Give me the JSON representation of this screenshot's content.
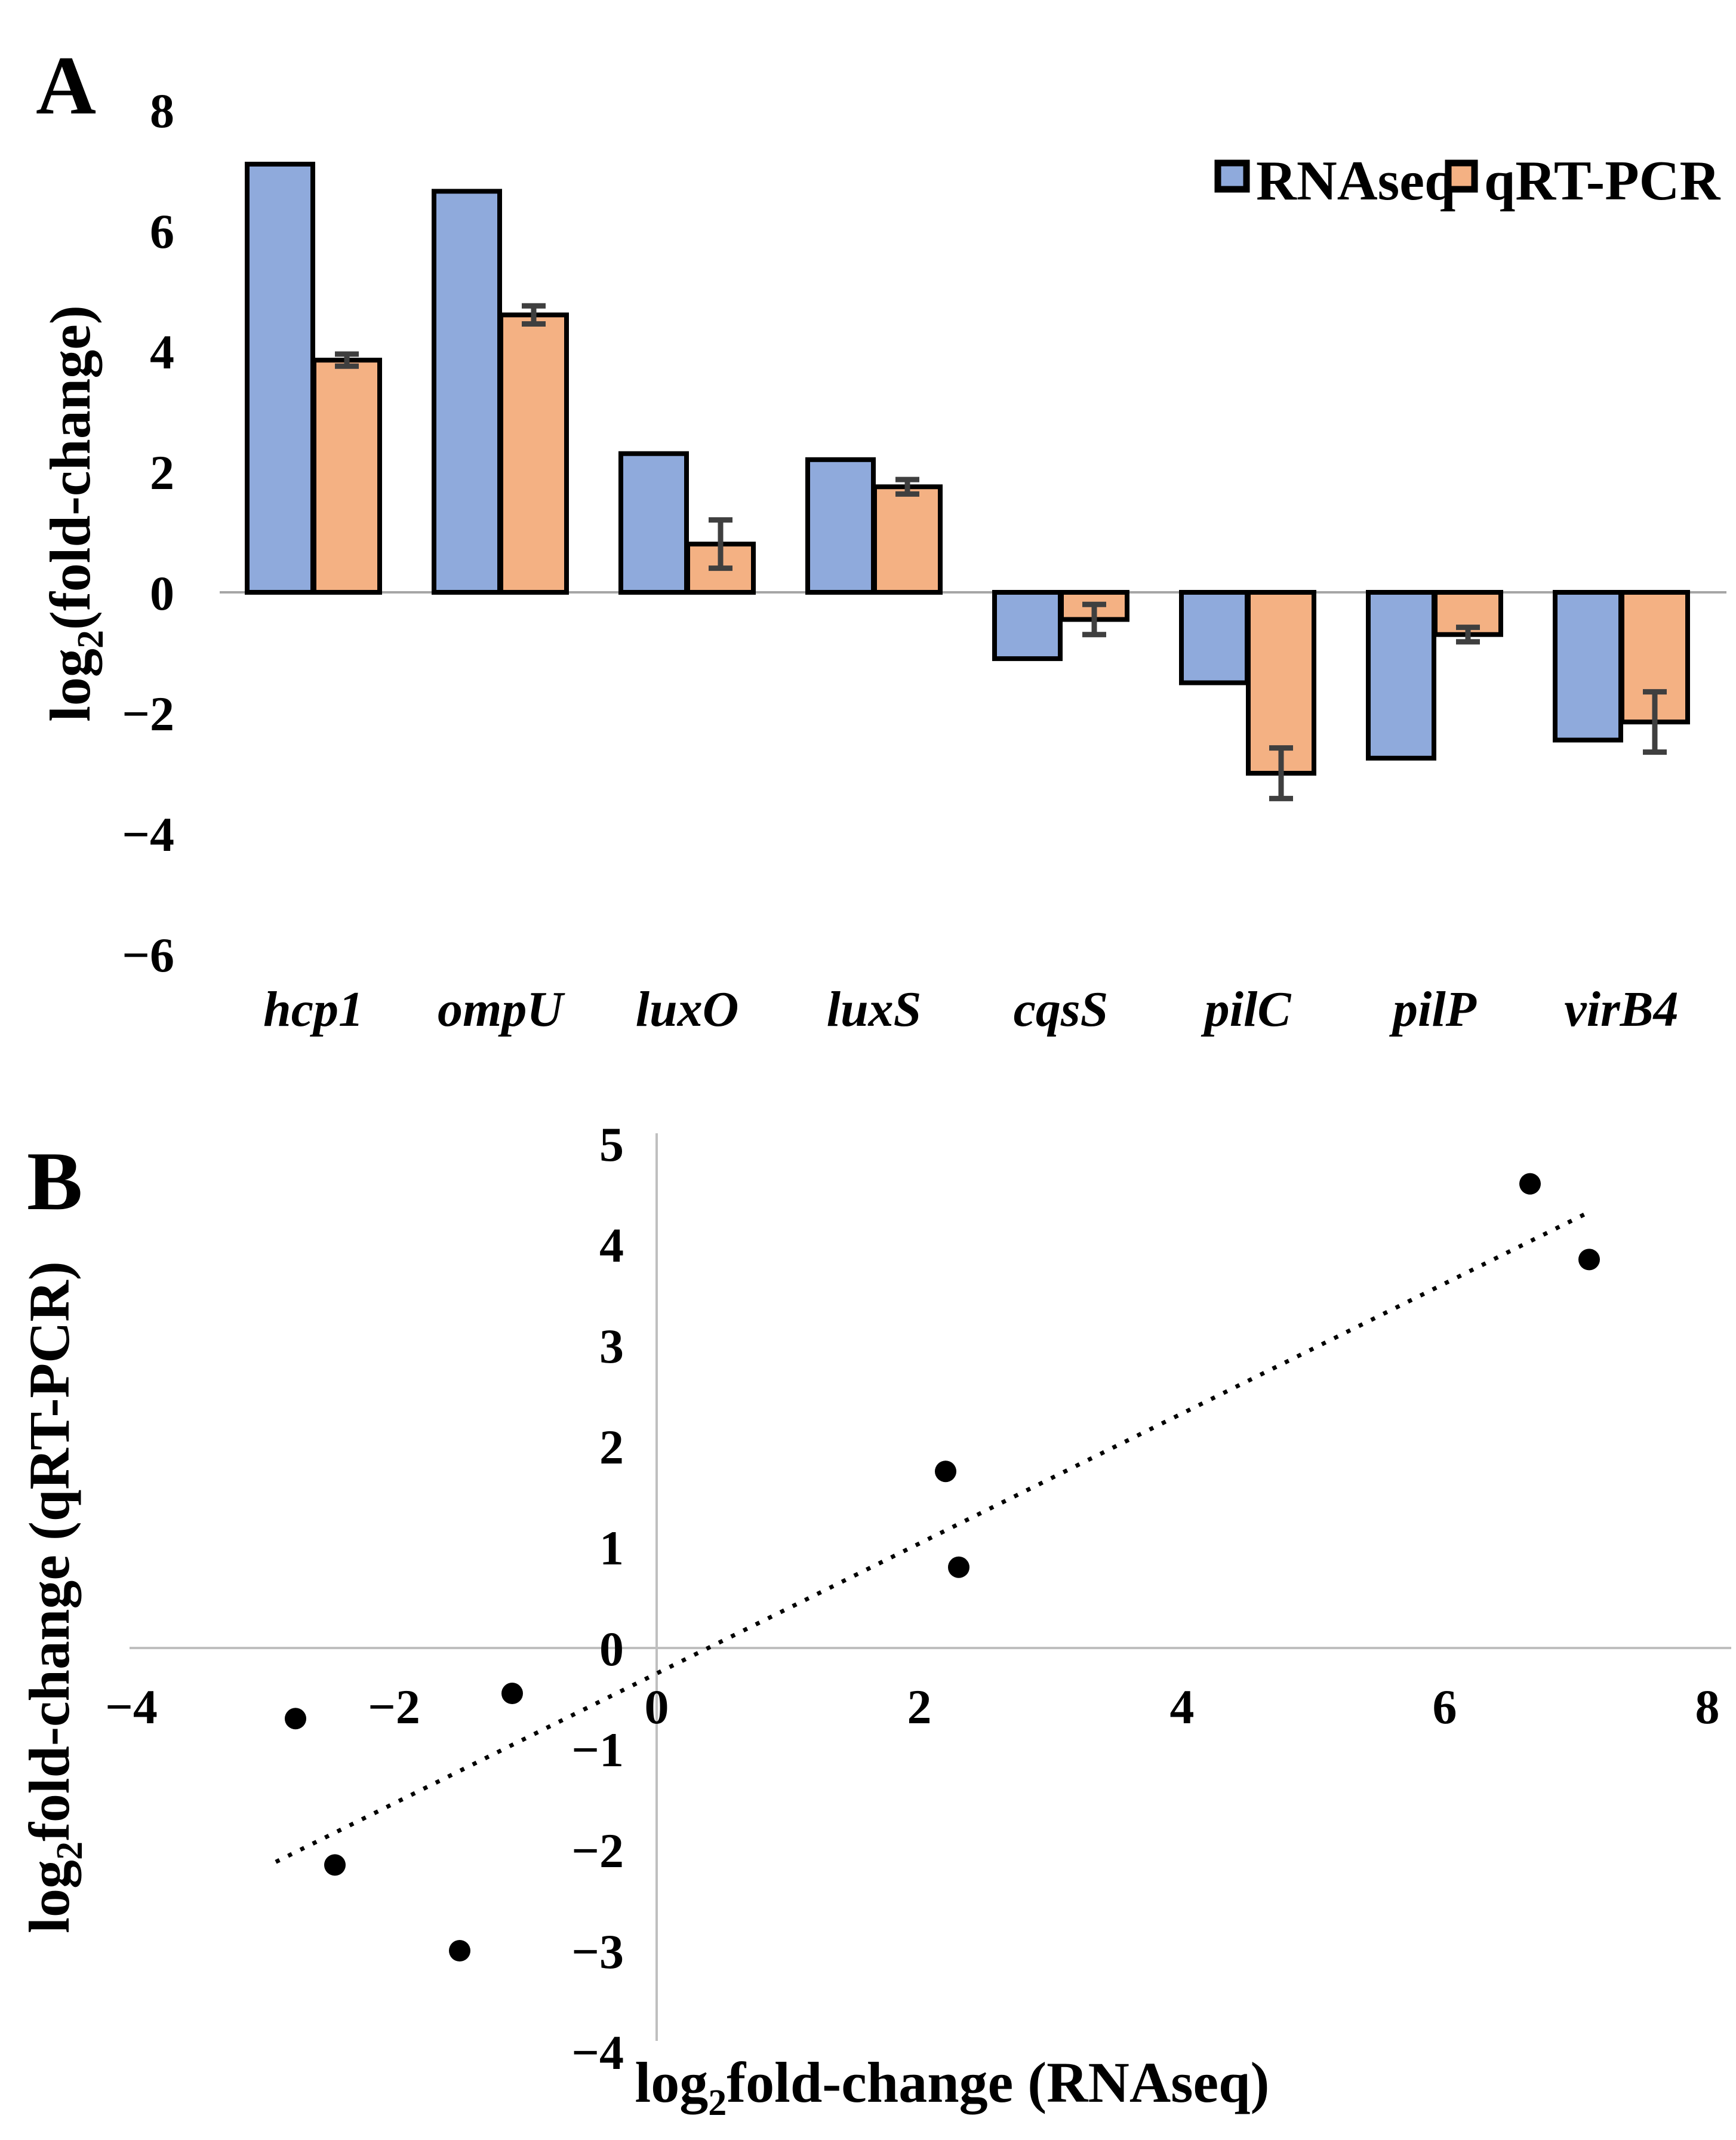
{
  "figure": {
    "panels": {
      "a": {
        "label": "A"
      },
      "b": {
        "label": "B"
      }
    }
  },
  "colors": {
    "rnaseq_fill": "#8FAADC",
    "qrtpcr_fill": "#F4B183",
    "bar_border": "#000000",
    "error_bar": "#3F3F3F",
    "zero_line": "#A6A6A6",
    "axis_line": "#BFBFBF",
    "point": "#000000",
    "trendline": "#000000"
  },
  "chart_data": [
    {
      "type": "bar",
      "panel": "A",
      "categories": [
        "hcp1",
        "ompU",
        "luxO",
        "luxS",
        "cqsS",
        "pilC",
        "pilP",
        "virB4"
      ],
      "series": [
        {
          "name": "RNAseq",
          "color": "#8FAADC",
          "values": [
            7.1,
            6.65,
            2.3,
            2.2,
            -1.1,
            -1.5,
            -2.75,
            -2.45
          ]
        },
        {
          "name": "qRT-PCR",
          "color": "#F4B183",
          "values": [
            3.85,
            4.6,
            0.8,
            1.75,
            -0.45,
            -3.0,
            -0.7,
            -2.15
          ],
          "errors": [
            0.1,
            0.15,
            0.4,
            0.12,
            0.25,
            0.42,
            0.12,
            0.5
          ]
        }
      ],
      "ylabel": {
        "pre": "log",
        "sub": "2",
        "post": "(fold-change)"
      },
      "yticks": [
        8,
        6,
        4,
        2,
        0,
        -2,
        -4,
        -6
      ],
      "ylim": [
        -6,
        8
      ],
      "grid": "zero-line-only",
      "legend_position": "top-right"
    },
    {
      "type": "scatter",
      "panel": "B",
      "points": [
        {
          "x": 7.1,
          "y": 3.85
        },
        {
          "x": 6.65,
          "y": 4.6
        },
        {
          "x": 2.3,
          "y": 0.8
        },
        {
          "x": 2.2,
          "y": 1.75
        },
        {
          "x": -1.1,
          "y": -0.45
        },
        {
          "x": -1.5,
          "y": -3.0
        },
        {
          "x": -2.75,
          "y": -0.7
        },
        {
          "x": -2.45,
          "y": -2.15
        }
      ],
      "trendline": {
        "style": "dotted",
        "x1": -2.9,
        "y1": -2.12,
        "x2": 7.1,
        "y2": 4.32
      },
      "xlabel": {
        "pre": "log",
        "sub": "2",
        "post": "fold-change (RNAseq)"
      },
      "ylabel": {
        "pre": "log",
        "sub": "2",
        "post": "fold-change (qRT-PCR)"
      },
      "xticks": [
        -4,
        -2,
        0,
        2,
        4,
        6,
        8
      ],
      "yticks": [
        5,
        4,
        3,
        2,
        1,
        0,
        -1,
        -2,
        -3,
        -4
      ],
      "xlim": [
        -4,
        8
      ],
      "ylim": [
        -4,
        5
      ],
      "grid": "axis-lines-only"
    }
  ]
}
